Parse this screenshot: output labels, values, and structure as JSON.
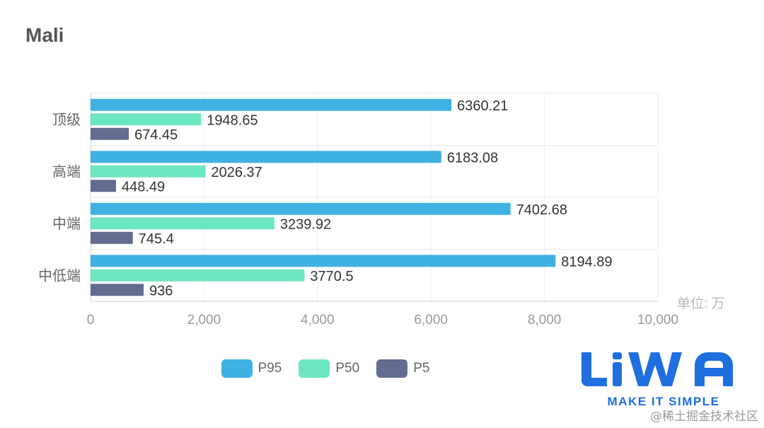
{
  "title": "Mali",
  "chart_data": {
    "type": "bar",
    "orientation": "horizontal",
    "categories": [
      "顶级",
      "高端",
      "中端",
      "中低端"
    ],
    "series": [
      {
        "name": "P95",
        "color": "#3fb1e3",
        "values": [
          6360.21,
          6183.08,
          7402.68,
          8194.89
        ],
        "labels": [
          "6360.21",
          "6183.08",
          "7402.68",
          "8194.89"
        ]
      },
      {
        "name": "P50",
        "color": "#6be6c1",
        "values": [
          1948.65,
          2026.37,
          3239.92,
          3770.5
        ],
        "labels": [
          "1948.65",
          "2026.37",
          "3239.92",
          "3770.5"
        ]
      },
      {
        "name": "P5",
        "color": "#626c91",
        "values": [
          674.45,
          448.49,
          745.4,
          936
        ],
        "labels": [
          "674.45",
          "448.49",
          "745.4",
          "936"
        ]
      }
    ],
    "xlim": [
      0,
      10000
    ],
    "xticks": [
      "0",
      "2,000",
      "4,000",
      "6,000",
      "8,000",
      "10,000"
    ],
    "xtick_values": [
      0,
      2000,
      4000,
      6000,
      8000,
      10000
    ],
    "unit_label": "单位: 万",
    "legend_position": "bottom"
  },
  "logo": {
    "brand": "LiWA",
    "tagline": "MAKE IT SIMPLE"
  },
  "watermark": "@稀土掘金技术社区"
}
